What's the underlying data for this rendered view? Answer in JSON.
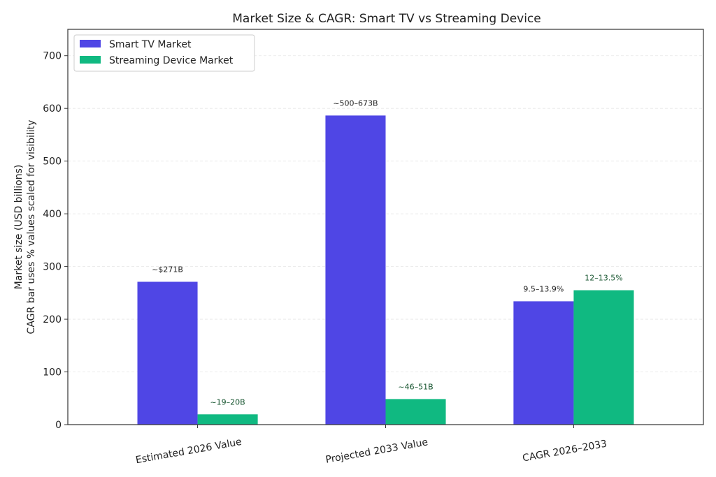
{
  "chart_data": {
    "type": "bar",
    "title": "Market Size & CAGR: Smart TV vs Streaming Device",
    "xlabel": "",
    "ylabel_lines": [
      "Market size (USD billions)",
      "CAGR bar uses % values scaled for visibility"
    ],
    "ylim": [
      0,
      750
    ],
    "yticks": [
      0,
      100,
      200,
      300,
      400,
      500,
      600,
      700
    ],
    "grid": true,
    "legend_position": "top-left",
    "categories": [
      "Estimated 2026 Value",
      "Projected 2033 Value",
      "CAGR 2026–2033"
    ],
    "series": [
      {
        "name": "Smart TV Market",
        "color": "#4f46e5",
        "label_color": "#222222",
        "values": [
          271,
          586.5,
          234
        ],
        "labels": [
          "~$271B",
          "~500–673B",
          "9.5–13.9%"
        ]
      },
      {
        "name": "Streaming Device Market",
        "color": "#10b981",
        "label_color": "#14532d",
        "values": [
          19.5,
          48.5,
          255
        ],
        "labels": [
          "~19–20B",
          "~46–51B",
          "12–13.5%"
        ]
      }
    ]
  }
}
